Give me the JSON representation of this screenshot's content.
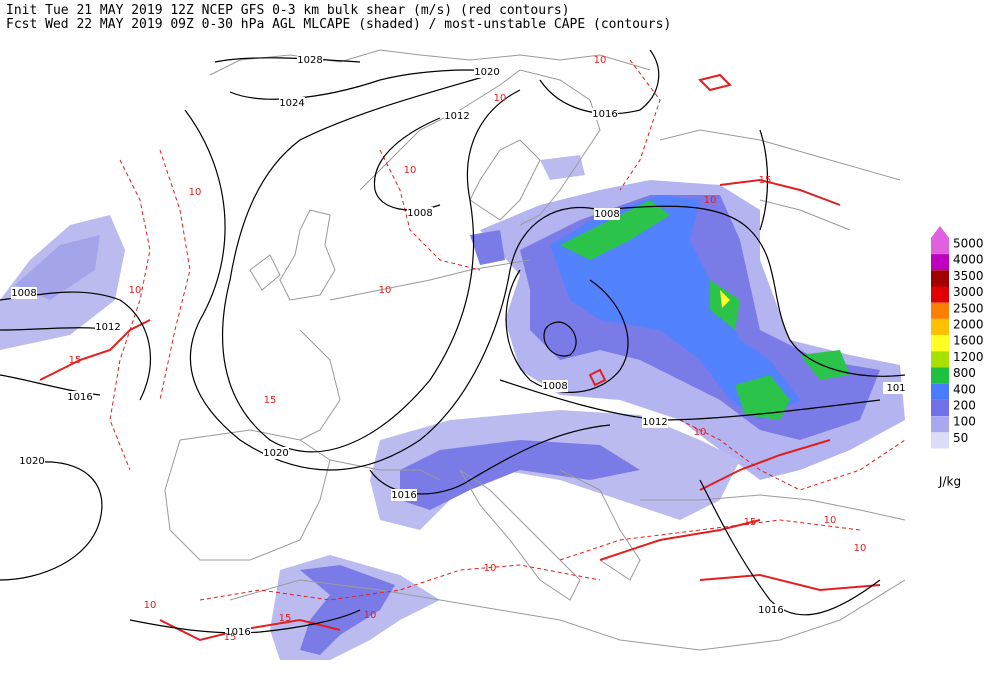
{
  "header": {
    "line1": "Init  Tue 21 MAY 2019 12Z  NCEP GFS 0-3 km bulk shear (m/s) (red contours)",
    "line2": "Fcst Wed 22 MAY 2019 09Z  0-30 hPa AGL MLCAPE (shaded) / most-unstable CAPE (contours)"
  },
  "pressure_labels": [
    "1028",
    "1020",
    "1024",
    "1012",
    "1016",
    "1008",
    "1008",
    "1008",
    "1012",
    "1016",
    "1008",
    "1012",
    "1020",
    "1020",
    "1016",
    "1016",
    "1016",
    "101"
  ],
  "shear_labels": [
    "10",
    "10",
    "10",
    "15",
    "10",
    "10",
    "10",
    "15",
    "10",
    "15",
    "10",
    "15",
    "15",
    "10",
    "10",
    "10",
    "15",
    "10",
    "10"
  ],
  "colorbar": {
    "levels": [
      5000,
      4000,
      3500,
      3000,
      2500,
      2000,
      1600,
      1200,
      800,
      400,
      200,
      100,
      50
    ],
    "colors": [
      "#e060e0",
      "#c000c0",
      "#a00000",
      "#e00000",
      "#ff8000",
      "#ffc000",
      "#ffff20",
      "#a8e000",
      "#20c040",
      "#4a7cff",
      "#7070e8",
      "#a8a8f0",
      "#dcdcf8"
    ],
    "unit": "J/kg"
  }
}
